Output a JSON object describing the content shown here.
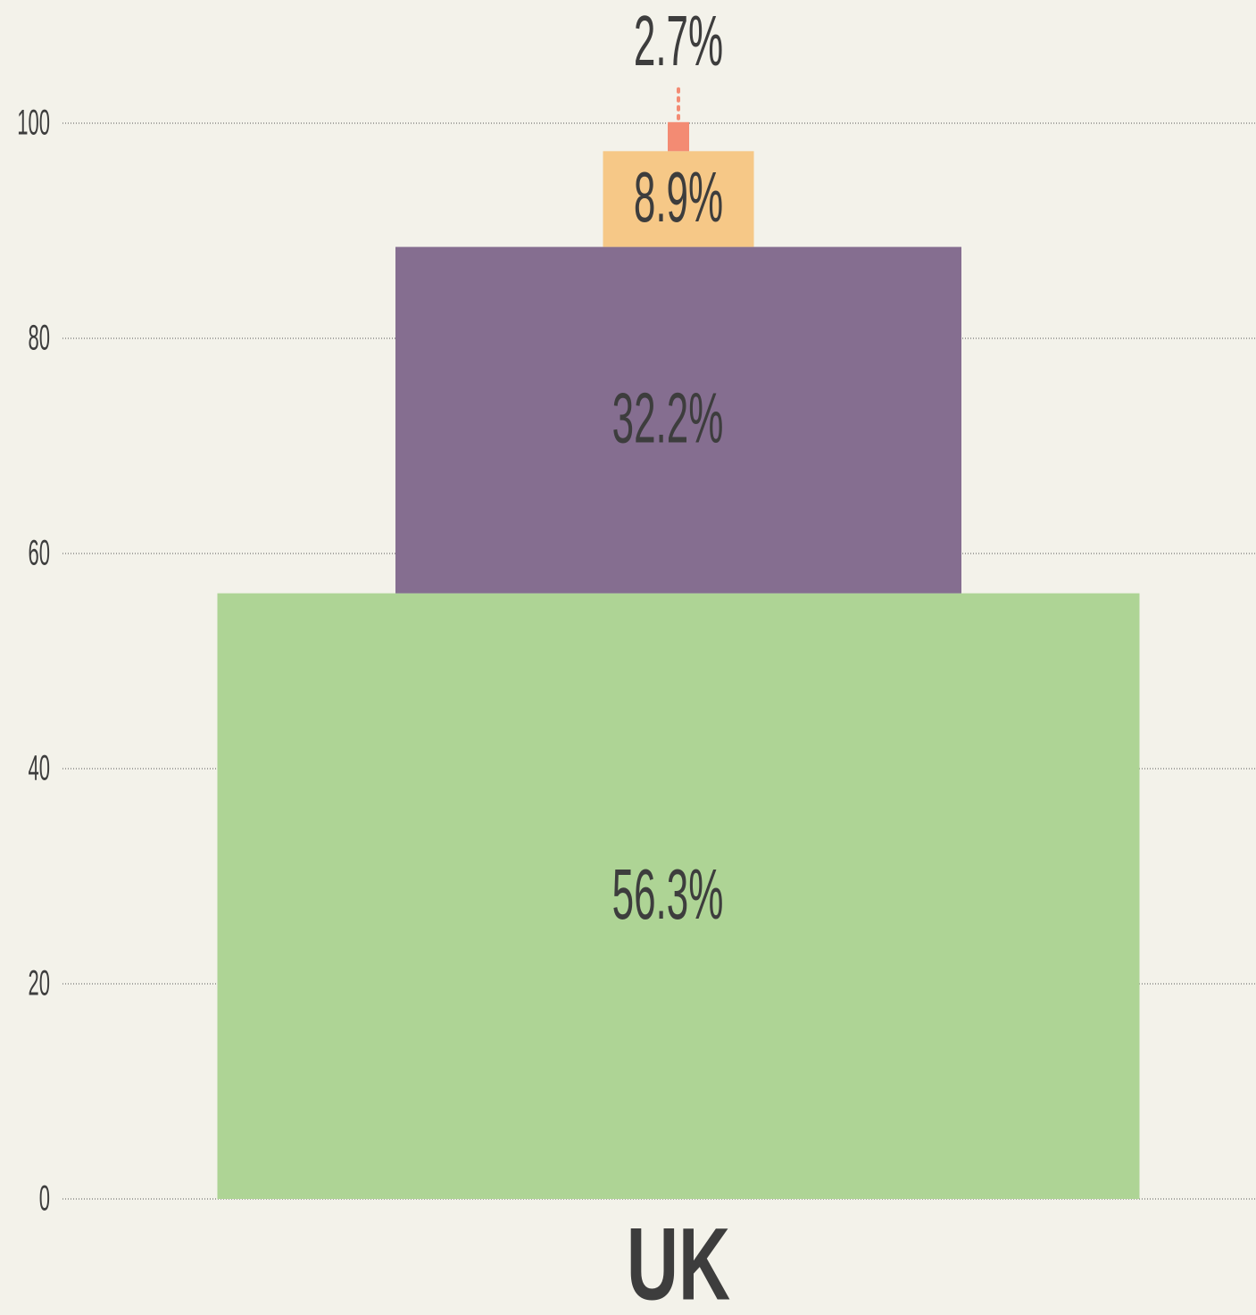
{
  "chart_data": {
    "type": "stacked_bar",
    "categories": [
      "UK"
    ],
    "series": [
      {
        "color": "#aed495",
        "values": [
          56.3
        ],
        "value_labels": [
          "56.3%"
        ]
      },
      {
        "color": "#856e90",
        "values": [
          32.2
        ],
        "value_labels": [
          "32.2%"
        ]
      },
      {
        "color": "#f6c887",
        "values": [
          8.9
        ],
        "value_labels": [
          "8.9%"
        ]
      },
      {
        "color": "#f38b73",
        "values": [
          2.7
        ],
        "value_labels": [
          "2.7%"
        ]
      }
    ],
    "ylim": [
      0,
      100
    ],
    "yticks": [
      0,
      20,
      40,
      60,
      80,
      100
    ],
    "grid": true
  }
}
